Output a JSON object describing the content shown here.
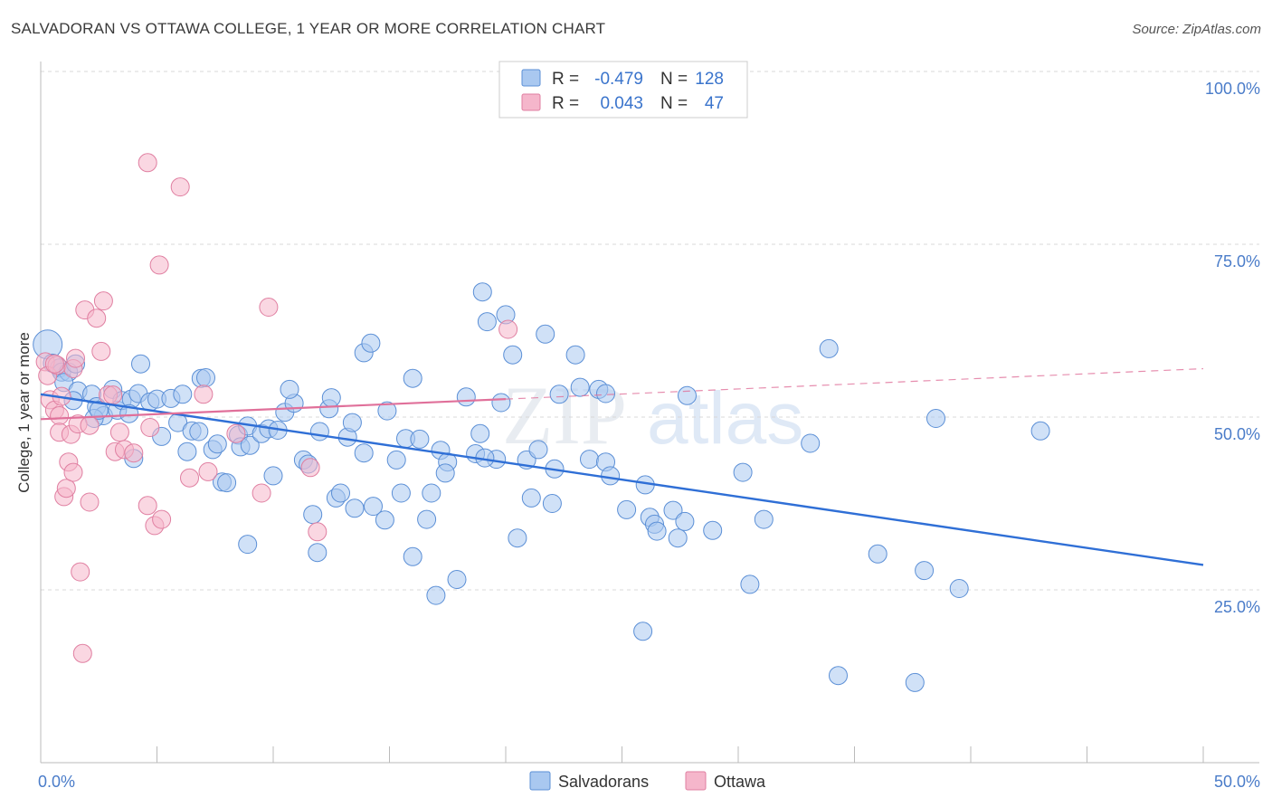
{
  "title": "SALVADORAN VS OTTAWA COLLEGE, 1 YEAR OR MORE CORRELATION CHART",
  "source": "Source: ZipAtlas.com",
  "watermark": {
    "zip": "ZIP",
    "atlas": "atlas"
  },
  "legend": {
    "r_label": "R =",
    "n_label": "N =",
    "rows": [
      {
        "r": "-0.479",
        "n": "128",
        "color": "#a9c8f0",
        "stroke": "#5b8fd6"
      },
      {
        "r": "0.043",
        "n": "47",
        "color": "#f5b6cb",
        "stroke": "#e07fa1"
      }
    ]
  },
  "bottom_legend": [
    "Salvadorans",
    "Ottawa"
  ],
  "chart_data": {
    "type": "scatter",
    "title": "SALVADORAN VS OTTAWA COLLEGE, 1 YEAR OR MORE CORRELATION CHART",
    "xlabel": "",
    "ylabel": "College, 1 year or more",
    "xlim": [
      0,
      50
    ],
    "ylim": [
      0,
      105
    ],
    "x_tick_labels": [
      "0.0%",
      "50.0%"
    ],
    "y_ticks": [
      25,
      50,
      75,
      100
    ],
    "y_tick_labels": [
      "25.0%",
      "50.0%",
      "75.0%",
      "100.0%"
    ],
    "series": [
      {
        "name": "Salvadorans",
        "color": "#a9c8f0",
        "stroke": "#5b8fd6",
        "trend": {
          "x0": 0,
          "y0": 53.3,
          "x1": 50,
          "y1": 28.6,
          "color": "#2f6fd6"
        },
        "points": [
          [
            0.3,
            60.5,
            1.6
          ],
          [
            0.5,
            57.8,
            1
          ],
          [
            0.8,
            57.1,
            1
          ],
          [
            0.9,
            56.5,
            1
          ],
          [
            1.2,
            56.5,
            1
          ],
          [
            1.5,
            57.7,
            1
          ],
          [
            1.0,
            55.0,
            1
          ],
          [
            1.6,
            53.8,
            1
          ],
          [
            2.2,
            53.3,
            1
          ],
          [
            2.4,
            51.5,
            1
          ],
          [
            2.7,
            50.2,
            1
          ],
          [
            2.3,
            49.8,
            1
          ],
          [
            3.1,
            54.0,
            1
          ],
          [
            3.3,
            51.0,
            1
          ],
          [
            3.5,
            52.4,
            1
          ],
          [
            3.9,
            52.6,
            1
          ],
          [
            4.2,
            53.4,
            1
          ],
          [
            4.3,
            57.7,
            1
          ],
          [
            4.7,
            52.2,
            1
          ],
          [
            5.0,
            52.6,
            1
          ],
          [
            5.2,
            47.2,
            1
          ],
          [
            5.6,
            52.7,
            1
          ],
          [
            5.9,
            49.2,
            1
          ],
          [
            6.1,
            53.3,
            1
          ],
          [
            6.3,
            45.0,
            1
          ],
          [
            6.5,
            48.0,
            1
          ],
          [
            6.8,
            47.9,
            1
          ],
          [
            6.9,
            55.6,
            1
          ],
          [
            7.1,
            55.7,
            1
          ],
          [
            7.4,
            45.3,
            1
          ],
          [
            7.6,
            46.1,
            1
          ],
          [
            4.0,
            44.0,
            1
          ],
          [
            7.8,
            40.6,
            1
          ],
          [
            8.0,
            40.5,
            1
          ],
          [
            8.5,
            47.4,
            1
          ],
          [
            8.6,
            45.7,
            1
          ],
          [
            8.9,
            48.7,
            1
          ],
          [
            9.0,
            45.9,
            1
          ],
          [
            9.5,
            47.6,
            1
          ],
          [
            9.8,
            48.3,
            1
          ],
          [
            8.9,
            31.6,
            1
          ],
          [
            10.2,
            48.1,
            1
          ],
          [
            10.5,
            50.7,
            1
          ],
          [
            10.9,
            52.0,
            1
          ],
          [
            10.7,
            54.0,
            1
          ],
          [
            11.3,
            43.8,
            1
          ],
          [
            11.5,
            43.2,
            1
          ],
          [
            11.7,
            35.9,
            1
          ],
          [
            12.0,
            47.9,
            1
          ],
          [
            12.4,
            51.2,
            1
          ],
          [
            12.5,
            52.8,
            1
          ],
          [
            12.7,
            38.3,
            1
          ],
          [
            12.9,
            39.0,
            1
          ],
          [
            13.2,
            47.1,
            1
          ],
          [
            13.4,
            49.2,
            1
          ],
          [
            13.9,
            59.3,
            1
          ],
          [
            14.2,
            60.7,
            1
          ],
          [
            13.5,
            36.8,
            1
          ],
          [
            13.9,
            44.8,
            1
          ],
          [
            14.3,
            37.1,
            1
          ],
          [
            14.8,
            35.1,
            1
          ],
          [
            14.9,
            50.9,
            1
          ],
          [
            15.3,
            43.8,
            1
          ],
          [
            15.5,
            39.0,
            1
          ],
          [
            15.7,
            46.9,
            1
          ],
          [
            16.0,
            55.6,
            1
          ],
          [
            16.3,
            46.8,
            1
          ],
          [
            16.6,
            35.2,
            1
          ],
          [
            16.8,
            39.0,
            1
          ],
          [
            16.0,
            29.8,
            1
          ],
          [
            17.2,
            45.2,
            1
          ],
          [
            17.5,
            43.5,
            1
          ],
          [
            17.4,
            41.9,
            1
          ],
          [
            17.9,
            26.5,
            1
          ],
          [
            17.0,
            24.2,
            1
          ],
          [
            18.3,
            52.9,
            1
          ],
          [
            18.7,
            44.7,
            1
          ],
          [
            18.9,
            47.6,
            1
          ],
          [
            19.0,
            68.1,
            1
          ],
          [
            19.2,
            63.8,
            1
          ],
          [
            19.6,
            43.9,
            1
          ],
          [
            19.8,
            52.1,
            1
          ],
          [
            20.0,
            64.8,
            1
          ],
          [
            20.3,
            59.0,
            1
          ],
          [
            20.5,
            32.5,
            1
          ],
          [
            20.9,
            43.8,
            1
          ],
          [
            21.1,
            38.3,
            1
          ],
          [
            21.4,
            45.3,
            1
          ],
          [
            21.7,
            62.0,
            1
          ],
          [
            22.0,
            37.5,
            1
          ],
          [
            22.1,
            42.5,
            1
          ],
          [
            22.3,
            53.3,
            1
          ],
          [
            23.0,
            59.0,
            1
          ],
          [
            23.2,
            54.3,
            1
          ],
          [
            23.6,
            43.9,
            1
          ],
          [
            24.0,
            54.0,
            1
          ],
          [
            24.3,
            53.4,
            1
          ],
          [
            24.3,
            43.5,
            1
          ],
          [
            24.5,
            41.5,
            1
          ],
          [
            25.2,
            36.6,
            1
          ],
          [
            25.9,
            19.0,
            1
          ],
          [
            26.0,
            40.2,
            1
          ],
          [
            26.2,
            35.5,
            1
          ],
          [
            26.4,
            34.5,
            1
          ],
          [
            26.5,
            33.5,
            1
          ],
          [
            27.2,
            36.5,
            1
          ],
          [
            27.4,
            32.5,
            1
          ],
          [
            27.8,
            53.1,
            1
          ],
          [
            27.7,
            34.9,
            1
          ],
          [
            28.9,
            33.6,
            1
          ],
          [
            30.2,
            42.0,
            1
          ],
          [
            30.5,
            25.8,
            1
          ],
          [
            31.1,
            35.2,
            1
          ],
          [
            33.1,
            46.2,
            1
          ],
          [
            33.9,
            59.9,
            1
          ],
          [
            34.3,
            12.6,
            1
          ],
          [
            36.0,
            30.2,
            1
          ],
          [
            37.6,
            11.6,
            1
          ],
          [
            38.0,
            27.8,
            1
          ],
          [
            38.5,
            49.8,
            1
          ],
          [
            39.5,
            25.2,
            1
          ],
          [
            43.0,
            48.0,
            1
          ],
          [
            19.1,
            44.1,
            1
          ],
          [
            10.0,
            41.5,
            1
          ],
          [
            11.9,
            30.4,
            1
          ],
          [
            3.8,
            50.5,
            1
          ],
          [
            2.5,
            51.0,
            1
          ],
          [
            1.4,
            52.4,
            1
          ]
        ]
      },
      {
        "name": "Ottawa",
        "color": "#f5b6cb",
        "stroke": "#e07fa1",
        "trend": {
          "x0": 0,
          "y0": 49.7,
          "x1": 20,
          "y1": 52.6,
          "dash_x1": 50,
          "dash_y1": 57.0,
          "color": "#e0709a"
        },
        "points": [
          [
            0.2,
            58.0,
            1
          ],
          [
            0.3,
            56.0,
            1
          ],
          [
            0.4,
            52.5,
            1
          ],
          [
            0.6,
            51.0,
            1
          ],
          [
            0.7,
            57.5,
            1
          ],
          [
            0.8,
            50.2,
            1
          ],
          [
            0.8,
            47.8,
            1
          ],
          [
            0.9,
            53.0,
            1
          ],
          [
            1.0,
            38.5,
            1
          ],
          [
            1.1,
            39.7,
            1
          ],
          [
            1.2,
            43.5,
            1
          ],
          [
            1.3,
            47.5,
            1
          ],
          [
            1.4,
            57.0,
            1
          ],
          [
            1.5,
            58.5,
            1
          ],
          [
            1.6,
            49.0,
            1
          ],
          [
            1.7,
            27.6,
            1
          ],
          [
            1.8,
            15.8,
            1
          ],
          [
            1.9,
            65.5,
            1
          ],
          [
            2.1,
            48.8,
            1
          ],
          [
            2.1,
            37.7,
            1
          ],
          [
            2.4,
            64.3,
            1
          ],
          [
            2.6,
            59.5,
            1
          ],
          [
            2.7,
            66.8,
            1
          ],
          [
            2.9,
            53.2,
            1
          ],
          [
            3.1,
            53.2,
            1
          ],
          [
            3.2,
            45.0,
            1
          ],
          [
            3.4,
            47.8,
            1
          ],
          [
            3.6,
            45.3,
            1
          ],
          [
            4.0,
            44.8,
            1
          ],
          [
            4.6,
            37.2,
            1
          ],
          [
            4.7,
            48.5,
            1
          ],
          [
            4.9,
            34.3,
            1
          ],
          [
            5.2,
            35.2,
            1
          ],
          [
            5.1,
            72.0,
            1
          ],
          [
            4.6,
            86.8,
            1
          ],
          [
            6.0,
            83.3,
            1
          ],
          [
            6.4,
            41.2,
            1
          ],
          [
            7.0,
            53.3,
            1
          ],
          [
            7.2,
            42.1,
            1
          ],
          [
            8.4,
            47.6,
            1
          ],
          [
            9.5,
            39.0,
            1
          ],
          [
            9.8,
            65.9,
            1
          ],
          [
            11.6,
            42.7,
            1
          ],
          [
            11.9,
            33.4,
            1
          ],
          [
            20.1,
            62.7,
            1
          ],
          [
            1.4,
            42.0,
            1
          ],
          [
            0.6,
            57.7,
            1
          ]
        ]
      }
    ]
  }
}
